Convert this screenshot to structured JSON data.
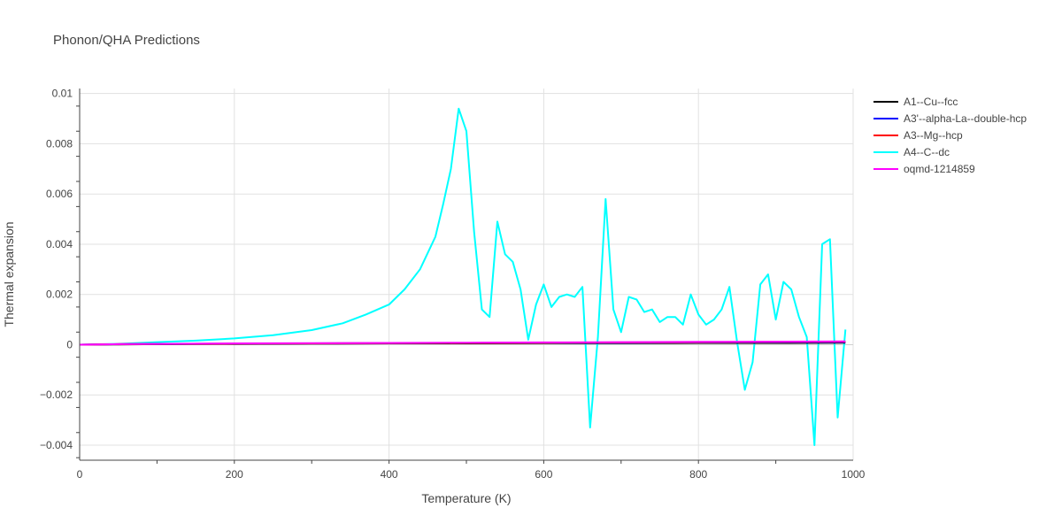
{
  "chart_data": {
    "type": "line",
    "title": "Phonon/QHA Predictions",
    "xlabel": "Temperature (K)",
    "ylabel": "Thermal expansion",
    "xlim": [
      0,
      1000
    ],
    "ylim": [
      -0.0046,
      0.0102
    ],
    "x_ticks": [
      0,
      200,
      400,
      600,
      800,
      1000
    ],
    "x_tick_labels": [
      "0",
      "200",
      "400",
      "600",
      "800",
      "1000"
    ],
    "y_ticks": [
      -0.004,
      -0.002,
      0,
      0.002,
      0.004,
      0.006,
      0.008,
      0.01
    ],
    "y_tick_labels": [
      "−0.004",
      "−0.002",
      "0",
      "0.002",
      "0.004",
      "0.006",
      "0.008",
      "0.01"
    ],
    "grid": true,
    "legend_position": "top-right",
    "series": [
      {
        "name": "A1--Cu--fcc",
        "color": "#000000",
        "x": [
          0,
          50,
          100,
          200,
          300,
          400,
          500,
          600,
          700,
          800,
          900,
          990
        ],
        "y": [
          0,
          1e-05,
          2e-05,
          3e-05,
          4e-05,
          5e-05,
          5e-05,
          6e-05,
          6e-05,
          7e-05,
          7e-05,
          8e-05
        ]
      },
      {
        "name": "A3'--alpha-La--double-hcp",
        "color": "#0000ff",
        "x": [
          0,
          50,
          100,
          200,
          300,
          400,
          500,
          600,
          700,
          800,
          900,
          990
        ],
        "y": [
          0,
          2e-05,
          3e-05,
          4e-05,
          5e-05,
          6e-05,
          7e-05,
          8e-05,
          8e-05,
          9e-05,
          0.0001,
          0.0001
        ]
      },
      {
        "name": "A3--Mg--hcp",
        "color": "#ff0000",
        "x": [
          0,
          50,
          100,
          200,
          300,
          400,
          500,
          600,
          700,
          800,
          900,
          990
        ],
        "y": [
          0,
          2e-05,
          3e-05,
          4e-05,
          5e-05,
          6e-05,
          7e-05,
          8e-05,
          9e-05,
          0.0001,
          0.00011,
          0.00012
        ]
      },
      {
        "name": "A4--C--dc",
        "color": "#00ffff",
        "x": [
          0,
          50,
          100,
          150,
          200,
          250,
          300,
          340,
          370,
          400,
          420,
          440,
          460,
          470,
          480,
          490,
          500,
          510,
          520,
          530,
          540,
          550,
          560,
          570,
          580,
          590,
          600,
          610,
          620,
          630,
          640,
          650,
          660,
          670,
          680,
          690,
          700,
          710,
          720,
          730,
          740,
          750,
          760,
          770,
          780,
          790,
          800,
          810,
          820,
          830,
          840,
          850,
          860,
          870,
          880,
          890,
          900,
          910,
          920,
          930,
          940,
          950,
          960,
          970,
          980,
          990
        ],
        "y": [
          0,
          3e-05,
          0.0001,
          0.00016,
          0.00025,
          0.00038,
          0.00058,
          0.00085,
          0.0012,
          0.0016,
          0.0022,
          0.003,
          0.0043,
          0.0056,
          0.007,
          0.0094,
          0.0085,
          0.0045,
          0.0014,
          0.0011,
          0.0049,
          0.0036,
          0.0033,
          0.0022,
          0.0002,
          0.0016,
          0.0024,
          0.0015,
          0.0019,
          0.002,
          0.0019,
          0.0023,
          -0.0033,
          0.0003,
          0.0058,
          0.0014,
          0.0005,
          0.0019,
          0.0018,
          0.0013,
          0.0014,
          0.0009,
          0.0011,
          0.0011,
          0.0008,
          0.002,
          0.0012,
          0.0008,
          0.001,
          0.0014,
          0.0023,
          0.0001,
          -0.0018,
          -0.0007,
          0.0024,
          0.0028,
          0.001,
          0.0025,
          0.0022,
          0.0011,
          0.0003,
          -0.004,
          0.004,
          0.0042,
          -0.0029,
          0.0006
        ]
      },
      {
        "name": "oqmd-1214859",
        "color": "#ff00ff",
        "x": [
          0,
          50,
          100,
          200,
          300,
          400,
          500,
          600,
          700,
          800,
          900,
          990
        ],
        "y": [
          0,
          2e-05,
          3e-05,
          5e-05,
          6e-05,
          7e-05,
          8e-05,
          9e-05,
          0.0001,
          0.00011,
          0.00012,
          0.00013
        ]
      }
    ]
  }
}
